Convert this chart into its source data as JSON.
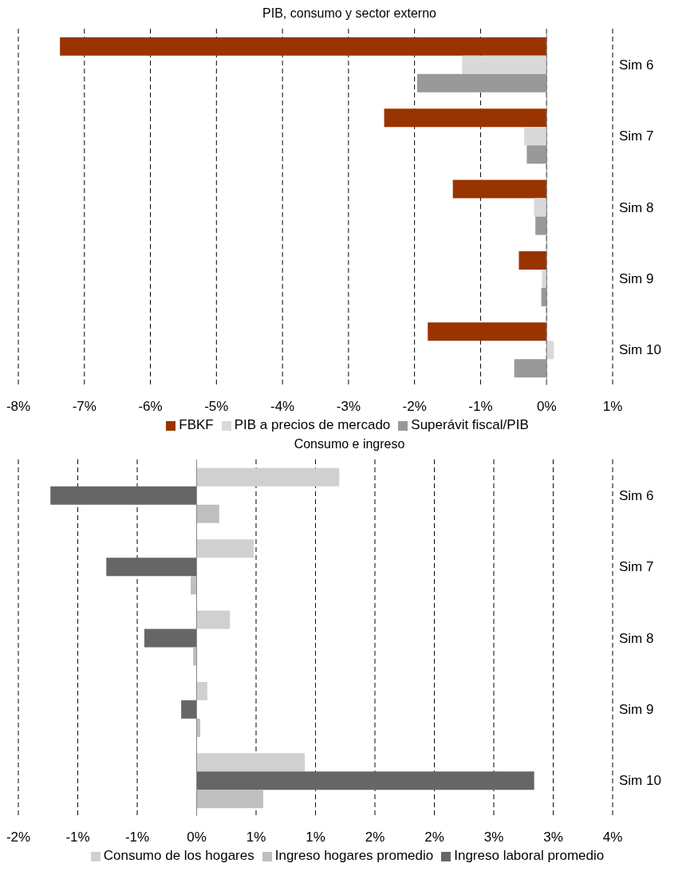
{
  "chart_data": [
    {
      "type": "bar",
      "orientation": "horizontal",
      "title": "PIB, consumo y sector externo",
      "categories": [
        "Sim 6",
        "Sim 7",
        "Sim 8",
        "Sim 9",
        "Sim 10"
      ],
      "series": [
        {
          "name": "FBKF",
          "color": "#993300",
          "values": [
            -7.37,
            -2.46,
            -1.42,
            -0.42,
            -1.8
          ]
        },
        {
          "name": "PIB a precios de mercado",
          "color": "#d9d9d9",
          "values": [
            -1.28,
            -0.34,
            -0.19,
            -0.07,
            0.11
          ]
        },
        {
          "name": "Superávit fiscal/PIB",
          "color": "#999999",
          "values": [
            -1.96,
            -0.3,
            -0.17,
            -0.08,
            -0.49
          ]
        }
      ],
      "xlim": [
        -8,
        1
      ],
      "xticks": [
        {
          "value": -8,
          "label": "-8%"
        },
        {
          "value": -7,
          "label": "-7%"
        },
        {
          "value": -6,
          "label": "-6%"
        },
        {
          "value": -5,
          "label": "-5%"
        },
        {
          "value": -4,
          "label": "-4%"
        },
        {
          "value": -3,
          "label": "-3%"
        },
        {
          "value": -2,
          "label": "-2%"
        },
        {
          "value": -1,
          "label": "-1%"
        },
        {
          "value": 0,
          "label": "0%"
        },
        {
          "value": 1,
          "label": "1%"
        }
      ],
      "grid": "x",
      "legend": "bottom"
    },
    {
      "type": "bar",
      "orientation": "horizontal",
      "title": "Consumo e ingreso",
      "categories": [
        "Sim 6",
        "Sim 7",
        "Sim 8",
        "Sim 9",
        "Sim 10"
      ],
      "series": [
        {
          "name": "Consumo de los hogares",
          "color": "#d0d0d0",
          "values": [
            1.2,
            0.48,
            0.28,
            0.09,
            0.91
          ]
        },
        {
          "name": "Ingreso laboral promedio",
          "color": "#666666",
          "values": [
            -1.23,
            -0.76,
            -0.44,
            -0.13,
            2.84
          ]
        },
        {
          "name": "Ingreso hogares promedio",
          "color": "#bfbfbf",
          "values": [
            0.19,
            -0.05,
            -0.03,
            0.03,
            0.56
          ]
        }
      ],
      "xlim": [
        -1.5,
        3.5
      ],
      "xticks": [
        {
          "value": -1.5,
          "label": "-2%"
        },
        {
          "value": -1,
          "label": "-1%"
        },
        {
          "value": -0.5,
          "label": "-1%"
        },
        {
          "value": 0,
          "label": "0%"
        },
        {
          "value": 0.5,
          "label": "1%"
        },
        {
          "value": 1,
          "label": "1%"
        },
        {
          "value": 1.5,
          "label": "2%"
        },
        {
          "value": 2,
          "label": "2%"
        },
        {
          "value": 2.5,
          "label": "3%"
        },
        {
          "value": 3,
          "label": "3%"
        },
        {
          "value": 3.5,
          "label": "4%"
        }
      ],
      "grid": "x",
      "legend": "bottom"
    }
  ]
}
